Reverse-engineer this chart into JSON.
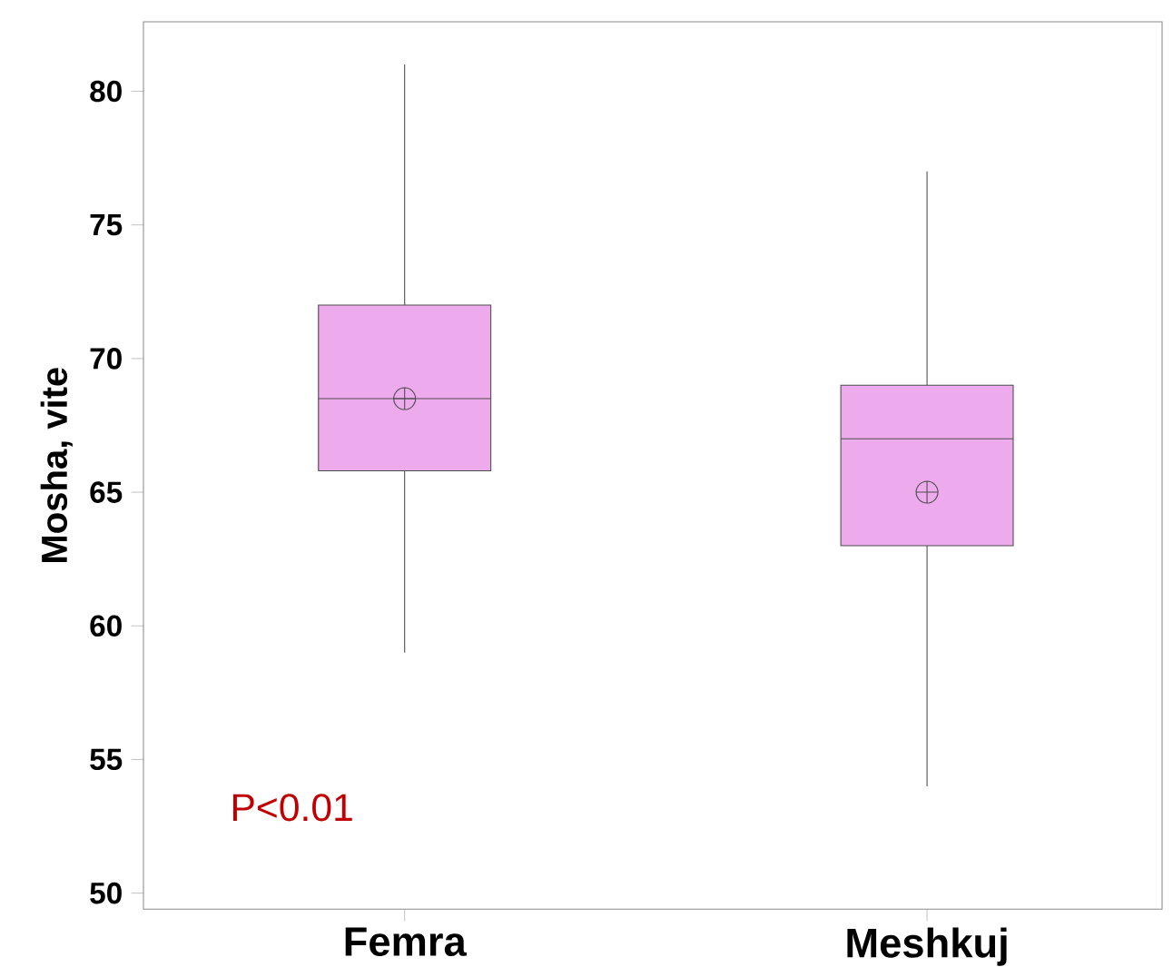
{
  "chart_data": {
    "type": "box",
    "categories": [
      "Femra",
      "Meshkuj"
    ],
    "boxes": [
      {
        "low": 59,
        "q1": 65.8,
        "median": 68.5,
        "q3": 72,
        "high": 81,
        "mean": 68.5
      },
      {
        "low": 54,
        "q1": 63,
        "median": 67,
        "q3": 69,
        "high": 77,
        "mean": 65
      }
    ],
    "color": "#edaaed",
    "ylabel": "Mosha, vite",
    "ylim": [
      49.4,
      82.6
    ],
    "yticks": [
      50,
      55,
      60,
      65,
      70,
      75,
      80
    ],
    "annotations": [
      "P<0.01"
    ],
    "grid": false
  }
}
